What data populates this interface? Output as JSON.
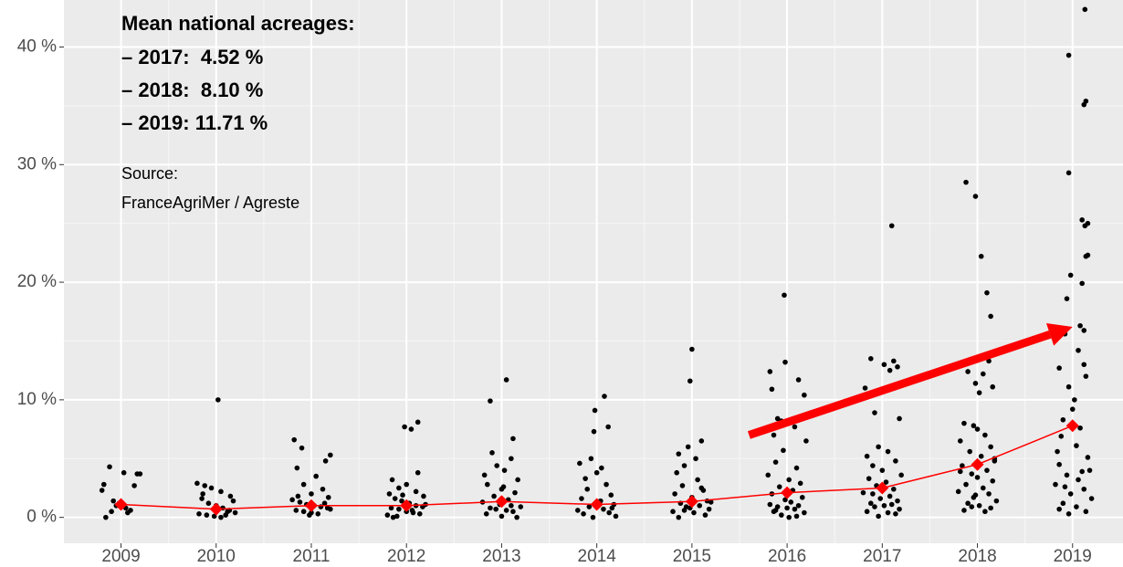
{
  "chart_data": {
    "type": "scatter",
    "xlim": [
      2008.4,
      2019.53
    ],
    "ylim": [
      -2.2,
      44
    ],
    "xticks": [
      2009,
      2010,
      2011,
      2012,
      2013,
      2014,
      2015,
      2016,
      2017,
      2018,
      2019
    ],
    "yticks": [
      {
        "value": 0,
        "label": "0 %"
      },
      {
        "value": 10,
        "label": "10 %"
      },
      {
        "value": 20,
        "label": "20 %"
      },
      {
        "value": 30,
        "label": "30 %"
      },
      {
        "value": 40,
        "label": "40 %"
      }
    ],
    "y_minor_ticks": [
      5,
      15,
      25,
      35
    ],
    "x_minor_ticks": [
      2009.5,
      2010.5,
      2011.5,
      2012.5,
      2013.5,
      2014.5,
      2015.5,
      2016.5,
      2017.5,
      2018.5
    ],
    "grid": true,
    "panel_color": "#ebebeb",
    "point_color": "#000000",
    "points": [
      {
        "x": [
          2008.8,
          2008.88,
          2008.95,
          2009.03,
          2009.1,
          2009.17,
          2008.84,
          2008.92,
          2009.0,
          2009.07,
          2009.14,
          2009.2,
          2008.82,
          2008.9,
          2008.98,
          2009.05
        ],
        "y": [
          2.3,
          4.3,
          1.0,
          3.8,
          0.6,
          3.7,
          0.0,
          1.4,
          0.9,
          0.4,
          2.7,
          3.7,
          2.8,
          0.5,
          1.2,
          0.8
        ]
      },
      {
        "x": [
          2010.02,
          2009.8,
          2009.88,
          2009.95,
          2010.05,
          2010.15,
          2009.85,
          2009.92,
          2010.0,
          2010.07,
          2010.14,
          2010.2,
          2009.82,
          2009.9,
          2009.98,
          2010.05,
          2010.12,
          2010.18,
          2009.86,
          2010.1
        ],
        "y": [
          10.0,
          2.9,
          2.7,
          2.5,
          2.2,
          1.8,
          1.6,
          1.2,
          1.0,
          0.8,
          0.6,
          0.4,
          0.3,
          0.2,
          0.1,
          0.0,
          0.5,
          1.4,
          2.0,
          0.2
        ]
      },
      {
        "x": [
          2010.82,
          2010.9,
          2011.2,
          2011.15,
          2010.85,
          2011.05,
          2010.92,
          2011.12,
          2011.0,
          2011.18,
          2010.8,
          2010.88,
          2010.95,
          2011.03,
          2011.1,
          2011.17,
          2010.84,
          2010.92,
          2011.0,
          2011.07,
          2011.14,
          2011.2,
          2010.86,
          2010.98
        ],
        "y": [
          6.6,
          5.9,
          5.3,
          4.8,
          4.2,
          3.5,
          2.8,
          2.4,
          2.0,
          1.7,
          1.5,
          1.3,
          1.1,
          1.0,
          0.9,
          0.8,
          0.6,
          0.5,
          0.4,
          0.3,
          1.2,
          0.7,
          1.8,
          0.2
        ]
      },
      {
        "x": [
          2012.12,
          2011.98,
          2012.05,
          2012.12,
          2011.85,
          2012.0,
          2011.92,
          2012.1,
          2011.82,
          2012.18,
          2011.88,
          2011.95,
          2012.03,
          2012.1,
          2012.17,
          2011.84,
          2011.92,
          2012.0,
          2012.07,
          2012.14,
          2011.8,
          2011.9,
          2011.86,
          2012.2,
          2012.06,
          2011.96
        ],
        "y": [
          8.1,
          7.7,
          7.5,
          3.8,
          3.2,
          2.8,
          2.5,
          2.2,
          2.0,
          1.8,
          1.6,
          1.4,
          1.2,
          1.0,
          0.9,
          0.8,
          0.7,
          0.5,
          0.4,
          0.3,
          0.2,
          0.1,
          0.0,
          1.1,
          0.6,
          1.9
        ]
      },
      {
        "x": [
          2013.05,
          2012.88,
          2013.12,
          2012.9,
          2013.1,
          2012.95,
          2013.03,
          2012.82,
          2013.17,
          2012.85,
          2013.0,
          2013.14,
          2012.92,
          2013.07,
          2012.8,
          2012.98,
          2013.2,
          2012.88,
          2013.05,
          2013.12,
          2012.84,
          2013.0,
          2013.16,
          2013.1,
          2012.94,
          2013.02
        ],
        "y": [
          11.7,
          9.9,
          6.7,
          5.5,
          5.0,
          4.4,
          4.0,
          3.6,
          3.2,
          2.8,
          2.4,
          2.1,
          1.8,
          1.5,
          1.3,
          1.1,
          0.9,
          0.8,
          0.6,
          0.5,
          0.3,
          0.1,
          0.0,
          1.0,
          0.7,
          2.6
        ]
      },
      {
        "x": [
          2014.08,
          2013.98,
          2014.12,
          2013.97,
          2013.94,
          2013.82,
          2014.05,
          2014.0,
          2013.88,
          2014.1,
          2013.9,
          2014.15,
          2013.84,
          2014.02,
          2014.18,
          2013.92,
          2014.07,
          2013.8,
          2014.13,
          2013.86,
          2014.2,
          2013.96,
          2014.04,
          2014.16
        ],
        "y": [
          10.3,
          9.1,
          7.7,
          7.3,
          5.0,
          4.6,
          4.2,
          3.8,
          3.3,
          2.8,
          2.4,
          1.9,
          1.6,
          1.3,
          1.1,
          0.9,
          0.7,
          0.6,
          0.4,
          0.3,
          0.1,
          0.0,
          1.4,
          0.8
        ]
      },
      {
        "x": [
          2015.0,
          2014.98,
          2015.1,
          2014.96,
          2014.86,
          2015.04,
          2014.92,
          2014.84,
          2015.06,
          2014.9,
          2015.12,
          2014.82,
          2015.0,
          2015.16,
          2014.88,
          2015.08,
          2014.94,
          2015.18,
          2014.8,
          2015.02,
          2015.14,
          2014.86,
          2015.2,
          2014.98,
          2015.1,
          2014.92
        ],
        "y": [
          14.3,
          11.6,
          6.5,
          6.0,
          5.4,
          5.0,
          4.4,
          3.8,
          3.2,
          2.7,
          2.3,
          2.0,
          1.7,
          1.4,
          1.2,
          1.0,
          0.9,
          0.7,
          0.5,
          0.4,
          0.2,
          0.0,
          1.3,
          0.8,
          2.5,
          0.6
        ]
      },
      {
        "x": [
          2015.97,
          2015.98,
          2015.82,
          2016.12,
          2015.84,
          2016.18,
          2015.9,
          2015.94,
          2016.08,
          2015.86,
          2016.2,
          2015.96,
          2015.88,
          2016.1,
          2015.8,
          2016.02,
          2016.14,
          2015.92,
          2016.06,
          2015.84,
          2016.16,
          2015.98,
          2016.04,
          2015.82,
          2016.12,
          2015.9,
          2016.0,
          2016.08,
          2015.86,
          2016.18,
          2015.94,
          2016.1,
          2016.02,
          2015.88
        ],
        "y": [
          18.9,
          13.2,
          12.4,
          11.7,
          10.9,
          10.4,
          8.4,
          8.2,
          7.7,
          7.0,
          6.5,
          5.7,
          4.7,
          4.2,
          3.6,
          3.2,
          2.9,
          2.6,
          2.3,
          2.0,
          1.7,
          1.5,
          1.3,
          1.1,
          1.0,
          0.9,
          0.8,
          0.7,
          0.5,
          0.4,
          0.2,
          0.1,
          0.0,
          0.6
        ]
      },
      {
        "x": [
          2017.1,
          2016.88,
          2017.12,
          2017.02,
          2017.16,
          2017.08,
          2016.82,
          2016.92,
          2017.18,
          2016.96,
          2017.06,
          2016.84,
          2017.14,
          2016.9,
          2017.0,
          2017.2,
          2016.86,
          2017.04,
          2016.94,
          2017.12,
          2016.8,
          2017.08,
          2016.98,
          2017.16,
          2016.88,
          2017.02,
          2016.92,
          2017.18,
          2016.84,
          2017.06,
          2017.14,
          2016.96,
          2016.9,
          2017.1
        ],
        "y": [
          24.8,
          13.5,
          13.3,
          13.0,
          12.8,
          12.5,
          11.0,
          8.9,
          8.4,
          6.0,
          5.6,
          5.2,
          4.8,
          4.4,
          4.0,
          3.6,
          3.3,
          3.0,
          2.7,
          2.4,
          2.1,
          1.8,
          1.6,
          1.4,
          1.2,
          1.0,
          0.9,
          0.7,
          0.5,
          0.4,
          0.3,
          0.1,
          2.0,
          1.1
        ]
      },
      {
        "x": [
          2017.88,
          2017.98,
          2018.04,
          2018.1,
          2018.14,
          2018.12,
          2017.9,
          2018.06,
          2017.98,
          2018.16,
          2018.02,
          2017.86,
          2017.96,
          2018.0,
          2018.08,
          2017.82,
          2018.14,
          2017.92,
          2018.04,
          2018.18,
          2017.84,
          2018.1,
          2017.94,
          2018.0,
          2018.16,
          2017.88,
          2018.06,
          2017.8,
          2018.12,
          2017.96,
          2018.2,
          2017.9,
          2018.02,
          2018.14,
          2017.86,
          2018.08,
          2017.82,
          2017.98,
          2018.18,
          2017.94
        ],
        "y": [
          28.5,
          27.3,
          22.2,
          19.1,
          17.1,
          13.3,
          12.4,
          12.2,
          11.4,
          11.1,
          10.6,
          8.0,
          7.8,
          7.5,
          7.0,
          6.5,
          6.0,
          5.6,
          5.2,
          4.8,
          4.4,
          4.0,
          3.7,
          3.4,
          3.1,
          2.8,
          2.5,
          2.2,
          2.0,
          1.7,
          1.4,
          1.2,
          1.0,
          0.8,
          0.6,
          0.5,
          3.9,
          1.9,
          5.0,
          0.9
        ]
      },
      {
        "x": [
          2019.13,
          2018.96,
          2019.14,
          2019.12,
          2018.96,
          2019.1,
          2019.16,
          2019.13,
          2019.16,
          2019.14,
          2018.98,
          2019.1,
          2018.94,
          2019.08,
          2019.12,
          2018.92,
          2019.06,
          2019.12,
          2018.86,
          2019.14,
          2018.96,
          2019.02,
          2019.0,
          2018.9,
          2019.08,
          2018.88,
          2019.04,
          2018.84,
          2019.16,
          2018.86,
          2019.18,
          2018.94,
          2019.06,
          2018.82,
          2019.12,
          2018.98,
          2019.2,
          2018.9,
          2019.04,
          2018.86,
          2019.14,
          2018.96,
          2019.1,
          2018.92
        ],
        "y": [
          43.2,
          39.3,
          35.4,
          35.1,
          29.3,
          25.3,
          25.0,
          24.8,
          22.3,
          22.2,
          20.6,
          19.9,
          18.6,
          16.3,
          15.9,
          15.6,
          14.2,
          13.0,
          12.7,
          12.0,
          11.1,
          10.0,
          9.2,
          8.3,
          7.6,
          6.9,
          6.1,
          5.6,
          5.1,
          4.5,
          4.0,
          3.6,
          3.2,
          2.8,
          2.4,
          2.0,
          1.6,
          1.2,
          0.9,
          0.7,
          0.5,
          0.3,
          3.9,
          2.6
        ]
      }
    ],
    "mean_line": {
      "color": "#ff0000",
      "x": [
        2009,
        2010,
        2011,
        2012,
        2013,
        2014,
        2015,
        2016,
        2017,
        2018,
        2019
      ],
      "values": [
        1.1,
        0.7,
        1.0,
        1.0,
        1.35,
        1.1,
        1.35,
        2.1,
        2.5,
        4.5,
        7.8
      ]
    },
    "arrow": {
      "color": "#ff0000",
      "x": [
        2015.6,
        2019.0
      ],
      "y": [
        7.0,
        16.2
      ]
    },
    "annotations": {
      "heading": "Mean national acreages:",
      "lines": [
        "– 2017:  4.52 %",
        "– 2018:  8.10 %",
        "– 2019: 11.71 %"
      ],
      "source": [
        "Source:",
        "FranceAgriMer / Agreste"
      ]
    }
  }
}
